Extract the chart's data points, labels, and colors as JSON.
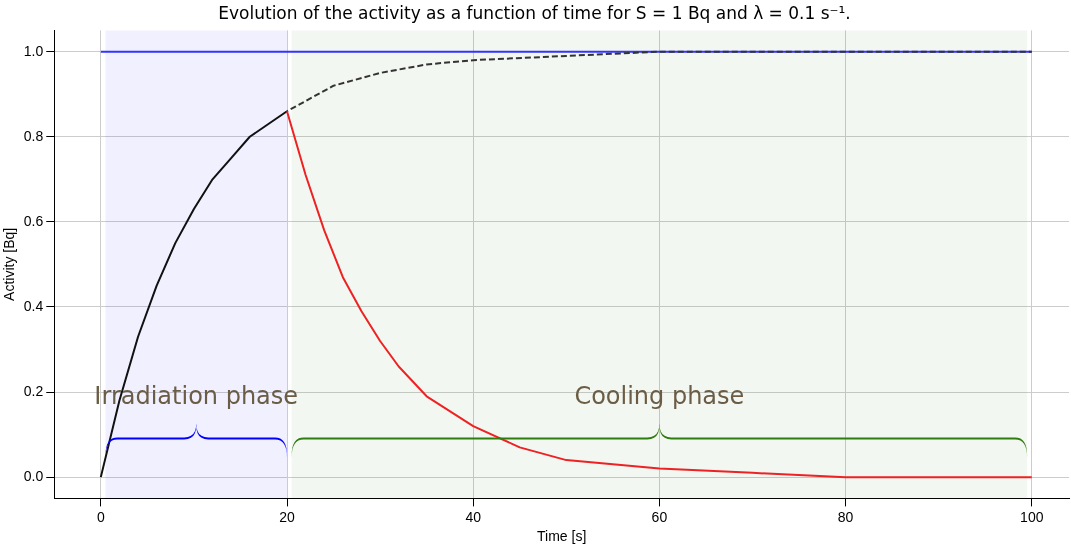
{
  "chart_data": {
    "type": "line",
    "title": "Evolution of the activity as a function of time for S = 1 Bq and λ = 0.1 s⁻¹.",
    "xlabel": "Time [s]",
    "ylabel": "Activity [Bq]",
    "xlim": [
      -5,
      104
    ],
    "xticks": [
      0,
      20,
      40,
      60,
      80,
      100
    ],
    "ylim": [
      -0.05,
      1.05
    ],
    "yticks": [
      {
        "value": 0,
        "label": "0.0"
      },
      {
        "value": 0.2,
        "label": "0.2"
      },
      {
        "value": 0.4,
        "label": "0.4"
      },
      {
        "value": 0.6,
        "label": "0.6"
      },
      {
        "value": 0.8,
        "label": "0.8"
      },
      {
        "value": 1,
        "label": "1.0"
      }
    ],
    "grid": true,
    "legend": false,
    "marker": "none",
    "series": [
      {
        "color": "#3333ff",
        "line_style": "solid",
        "x": [
          0,
          100
        ],
        "values": [
          1,
          1
        ]
      },
      {
        "color": "#111111",
        "line_style": "solid",
        "x": [
          0,
          2,
          4,
          6,
          8,
          10,
          12,
          14,
          16,
          18,
          20
        ],
        "values": [
          0,
          0.18,
          0.33,
          0.45,
          0.55,
          0.63,
          0.7,
          0.75,
          0.8,
          0.83,
          0.86
        ]
      },
      {
        "color": "#333333",
        "line_style": "dashed",
        "x": [
          20,
          25,
          30,
          35,
          40,
          50,
          60,
          80,
          100
        ],
        "values": [
          0.86,
          0.92,
          0.95,
          0.97,
          0.98,
          0.99,
          1,
          1,
          1
        ]
      },
      {
        "color": "#ee2222",
        "line_style": "solid",
        "x": [
          20,
          22,
          24,
          26,
          28,
          30,
          32,
          35,
          40,
          45,
          50,
          60,
          70,
          80,
          100
        ],
        "values": [
          0.86,
          0.71,
          0.58,
          0.47,
          0.39,
          0.32,
          0.26,
          0.19,
          0.12,
          0.07,
          0.04,
          0.02,
          0.01,
          0,
          0
        ]
      }
    ],
    "bands": [
      {
        "axis": "x",
        "from": 0.5,
        "to": 20,
        "label": "Irradiation phase",
        "color": "#0000ff"
      },
      {
        "axis": "x",
        "from": 20.5,
        "to": 99.5,
        "label": "Cooling phase",
        "color": "#2e7d0f"
      }
    ]
  }
}
